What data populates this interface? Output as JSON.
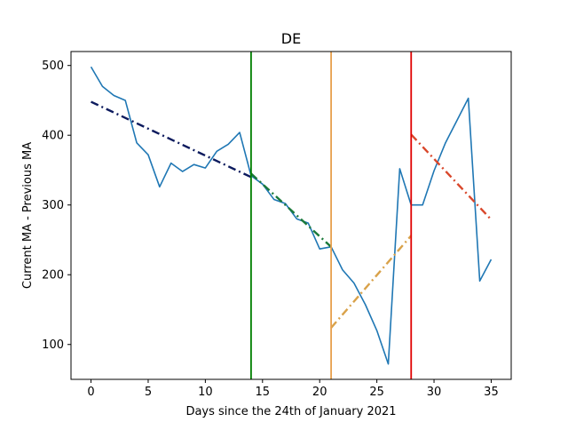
{
  "chart_data": {
    "type": "line",
    "title": "DE",
    "xlabel": "Days since the 24th of January 2021",
    "ylabel": "Current MA - Previous MA",
    "xlim": [
      -1.75,
      36.75
    ],
    "ylim": [
      50,
      520
    ],
    "xticks": [
      0,
      5,
      10,
      15,
      20,
      25,
      30,
      35
    ],
    "yticks": [
      100,
      200,
      300,
      400,
      500
    ],
    "grid": false,
    "series": [
      {
        "color": "#1f77b4",
        "style": "solid",
        "x": [
          0,
          1,
          2,
          3,
          4,
          5,
          6,
          7,
          8,
          9,
          10,
          11,
          12,
          13,
          14,
          15,
          16,
          17,
          18,
          19,
          20,
          21,
          22,
          23,
          24,
          25,
          26,
          27,
          28,
          29,
          30,
          31,
          32,
          33,
          34,
          35
        ],
        "y": [
          498,
          470,
          457,
          450,
          389,
          372,
          326,
          360,
          348,
          358,
          353,
          377,
          387,
          404,
          342,
          330,
          308,
          302,
          280,
          274,
          237,
          240,
          207,
          188,
          157,
          120,
          72,
          352,
          300,
          300,
          349,
          389,
          421,
          453,
          191,
          222
        ]
      }
    ],
    "trend_lines": [
      {
        "color": "#0d1b5e",
        "style": "dash-dot",
        "x": [
          0,
          14
        ],
        "y": [
          448,
          340
        ]
      },
      {
        "color": "#1b7a3a",
        "style": "dash-dot",
        "x": [
          14,
          21
        ],
        "y": [
          345,
          240
        ]
      },
      {
        "color": "#d9a24a",
        "style": "dash-dot",
        "x": [
          21,
          28
        ],
        "y": [
          124,
          256
        ]
      },
      {
        "color": "#d9472b",
        "style": "dash-dot",
        "x": [
          28,
          35
        ],
        "y": [
          401,
          279
        ]
      }
    ],
    "vertical_lines": [
      {
        "x": 14,
        "color": "#008000"
      },
      {
        "x": 21,
        "color": "#e8a04d"
      },
      {
        "x": 28,
        "color": "#e00000"
      }
    ]
  }
}
